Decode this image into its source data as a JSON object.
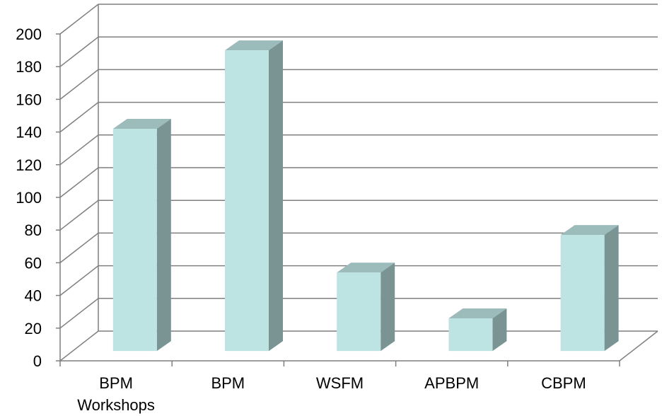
{
  "chart_data": {
    "type": "bar",
    "style": "3d-column",
    "categories": [
      [
        "BPM",
        "Workshops"
      ],
      [
        "BPM"
      ],
      [
        "WSFM"
      ],
      [
        "APBPM"
      ],
      [
        "CBPM"
      ]
    ],
    "values": [
      136,
      184,
      48,
      20,
      71
    ],
    "ylim": [
      0,
      200
    ],
    "yticks": [
      "0",
      "20",
      "40",
      "60",
      "80",
      "100",
      "120",
      "140",
      "160",
      "180",
      "200"
    ],
    "grid": true,
    "legend": "none",
    "colors": {
      "front": "#bde3e3",
      "side": "#7a9494",
      "top": "#9cbcbc",
      "grid": "#7f7f7f"
    }
  }
}
